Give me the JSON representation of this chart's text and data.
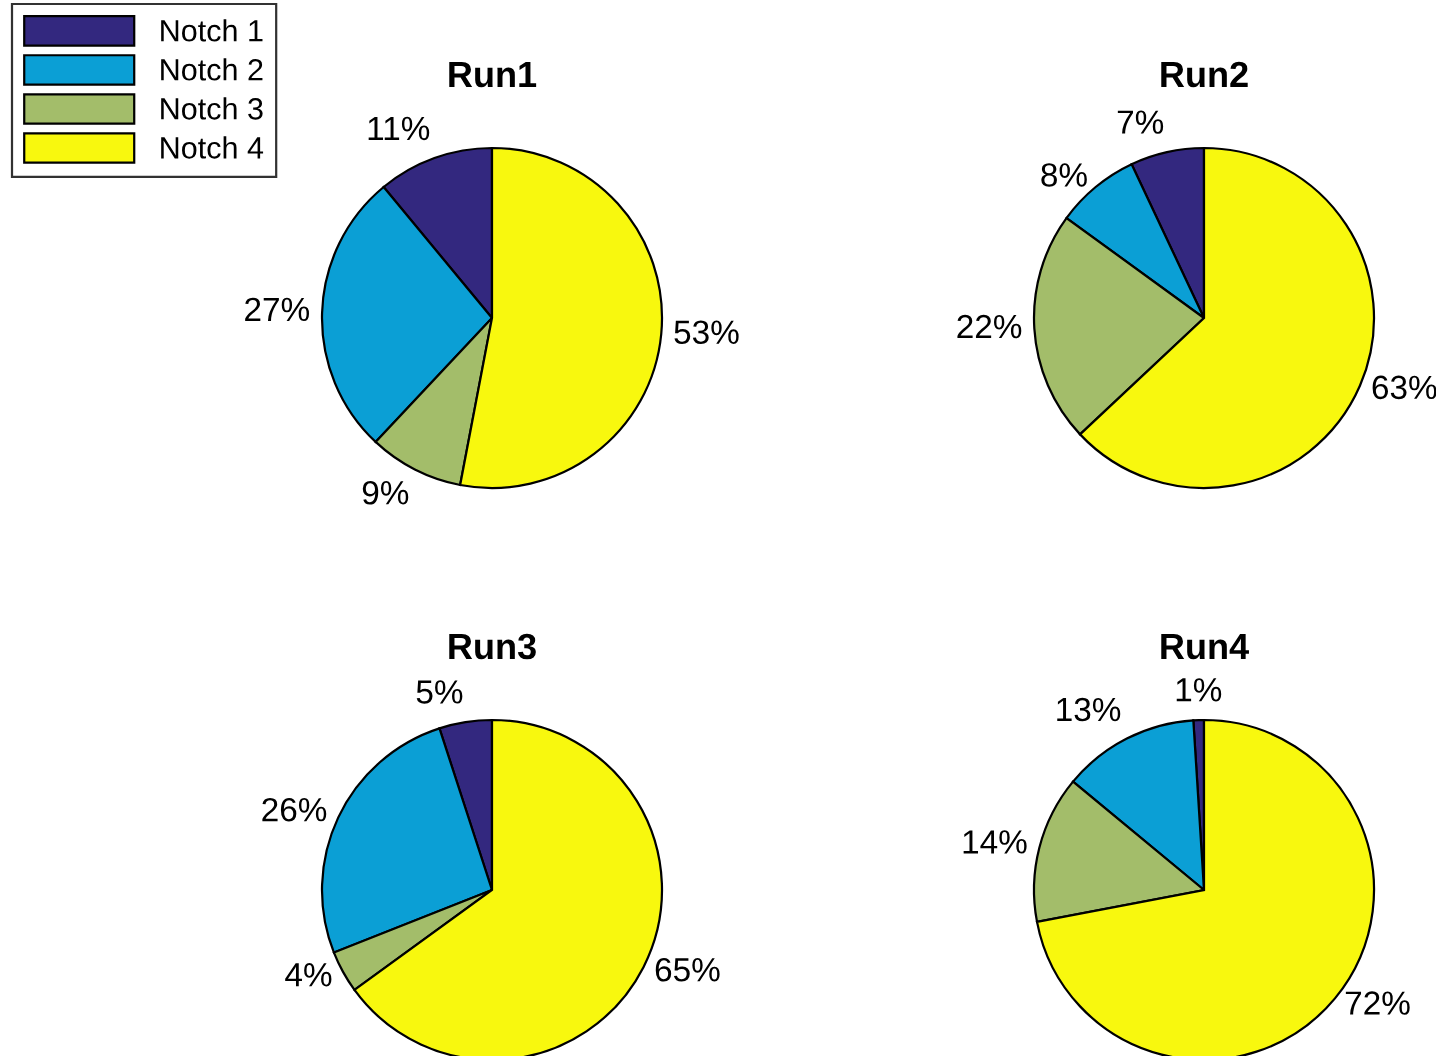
{
  "chart_data": [
    {
      "type": "pie",
      "title": "Run1",
      "categories": [
        "Notch 1",
        "Notch 2",
        "Notch 3",
        "Notch 4"
      ],
      "values": [
        11,
        27,
        9,
        53
      ],
      "value_labels": [
        "11%",
        "27%",
        "9%",
        "53%"
      ],
      "colors": [
        "#33287f",
        "#0b9fd5",
        "#a3bd6a",
        "#f8f80e"
      ],
      "legend": "top left"
    },
    {
      "type": "pie",
      "title": "Run2",
      "categories": [
        null,
        null,
        null,
        null
      ],
      "values": [
        7,
        8,
        22,
        63
      ],
      "value_labels": [
        "7%",
        "8%",
        "22%",
        "63%"
      ],
      "colors": [
        "#33287f",
        "#0b9fd5",
        "#a3bd6a",
        "#f8f80e"
      ]
    },
    {
      "type": "pie",
      "title": "Run3",
      "categories": [
        null,
        null,
        null,
        null
      ],
      "values": [
        5,
        26,
        4,
        65
      ],
      "value_labels": [
        "5%",
        "26%",
        "4%",
        "65%"
      ],
      "colors": [
        "#33287f",
        "#0b9fd5",
        "#a3bd6a",
        "#f8f80e"
      ]
    },
    {
      "type": "pie",
      "title": "Run4",
      "categories": [
        null,
        null,
        null,
        null
      ],
      "values": [
        1,
        13,
        14,
        72
      ],
      "value_labels": [
        "1%",
        "13%",
        "14%",
        "72%"
      ],
      "colors": [
        "#33287f",
        "#0b9fd5",
        "#a3bd6a",
        "#f8f80e"
      ]
    }
  ]
}
